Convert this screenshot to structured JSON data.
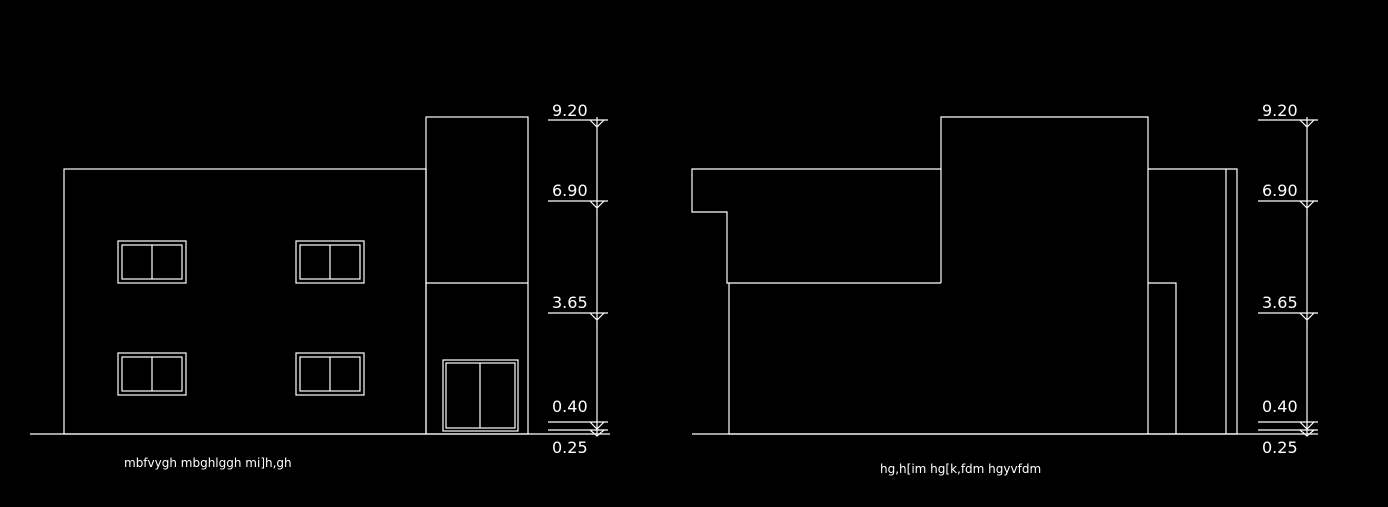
{
  "colors": {
    "background": "#000000",
    "lines": "#ffffff"
  },
  "elevations": [
    {
      "caption": "mbfvygh mbghlggh mi]h,gh",
      "levels": [
        {
          "label": "9.20"
        },
        {
          "label": "6.90"
        },
        {
          "label": "3.65"
        },
        {
          "label": "0.40"
        },
        {
          "label": "0.25"
        }
      ]
    },
    {
      "caption": "hg,h[im hg[k,fdm hgyvfdm",
      "levels": [
        {
          "label": "9.20"
        },
        {
          "label": "6.90"
        },
        {
          "label": "3.65"
        },
        {
          "label": "0.40"
        },
        {
          "label": "0.25"
        }
      ]
    }
  ]
}
